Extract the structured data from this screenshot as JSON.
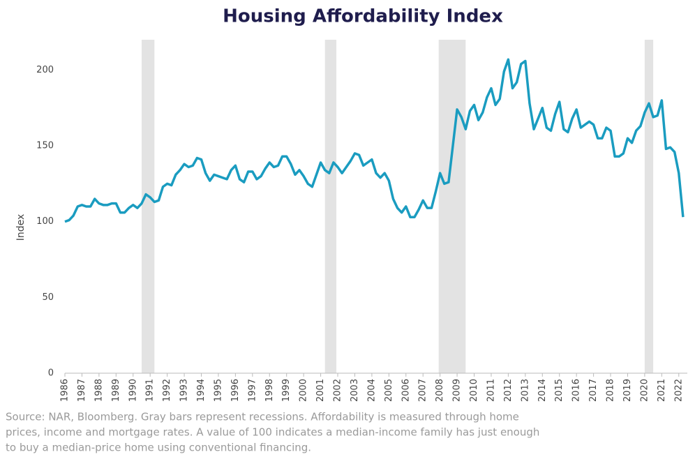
{
  "chart_data": {
    "type": "line",
    "title": "Housing Affordability Index",
    "y_label": "Index",
    "source_lines": [
      "Source: NAR, Bloomberg. Gray bars represent recessions. Affordability is measured through home",
      "prices, income and mortgage rates. A value of 100 indicates a median-income family has just enough",
      "to buy a median-price home using conventional financing."
    ],
    "x": [
      1986,
      1986.25,
      1986.5,
      1986.75,
      1987,
      1987.25,
      1987.5,
      1987.75,
      1988,
      1988.25,
      1988.5,
      1988.75,
      1989,
      1989.25,
      1989.5,
      1989.75,
      1990,
      1990.25,
      1990.5,
      1990.75,
      1991,
      1991.25,
      1991.5,
      1991.75,
      1992,
      1992.25,
      1992.5,
      1992.75,
      1993,
      1993.25,
      1993.5,
      1993.75,
      1994,
      1994.25,
      1994.5,
      1994.75,
      1995,
      1995.25,
      1995.5,
      1995.75,
      1996,
      1996.25,
      1996.5,
      1996.75,
      1997,
      1997.25,
      1997.5,
      1997.75,
      1998,
      1998.25,
      1998.5,
      1998.75,
      1999,
      1999.25,
      1999.5,
      1999.75,
      2000,
      2000.25,
      2000.5,
      2000.75,
      2001,
      2001.25,
      2001.5,
      2001.75,
      2002,
      2002.25,
      2002.5,
      2002.75,
      2003,
      2003.25,
      2003.5,
      2003.75,
      2004,
      2004.25,
      2004.5,
      2004.75,
      2005,
      2005.25,
      2005.5,
      2005.75,
      2006,
      2006.25,
      2006.5,
      2006.75,
      2007,
      2007.25,
      2007.5,
      2007.75,
      2008,
      2008.25,
      2008.5,
      2008.75,
      2009,
      2009.25,
      2009.5,
      2009.75,
      2010,
      2010.25,
      2010.5,
      2010.75,
      2011,
      2011.25,
      2011.5,
      2011.75,
      2012,
      2012.25,
      2012.5,
      2012.75,
      2013,
      2013.25,
      2013.5,
      2013.75,
      2014,
      2014.25,
      2014.5,
      2014.75,
      2015,
      2015.25,
      2015.5,
      2015.75,
      2016,
      2016.25,
      2016.5,
      2016.75,
      2017,
      2017.25,
      2017.5,
      2017.75,
      2018,
      2018.25,
      2018.5,
      2018.75,
      2019,
      2019.25,
      2019.5,
      2019.75,
      2020,
      2020.25,
      2020.5,
      2020.75,
      2021,
      2021.25,
      2021.5,
      2021.75,
      2022,
      2022.25
    ],
    "series": [
      {
        "name": "Housing Affordability Index",
        "color": "#1a9cc0",
        "values": [
          100,
          101,
          104,
          110,
          111,
          110,
          110,
          115,
          112,
          111,
          111,
          112,
          112,
          106,
          106,
          109,
          111,
          109,
          112,
          118,
          116,
          113,
          114,
          123,
          125,
          124,
          131,
          134,
          138,
          136,
          137,
          142,
          141,
          132,
          127,
          131,
          130,
          129,
          128,
          134,
          137,
          128,
          126,
          133,
          133,
          128,
          130,
          135,
          139,
          136,
          137,
          143,
          143,
          138,
          131,
          134,
          130,
          125,
          123,
          131,
          139,
          134,
          132,
          139,
          136,
          132,
          136,
          140,
          145,
          144,
          137,
          139,
          141,
          132,
          129,
          132,
          127,
          115,
          109,
          106,
          110,
          103,
          103,
          108,
          114,
          109,
          109,
          120,
          132,
          125,
          126,
          150,
          174,
          169,
          161,
          173,
          177,
          167,
          172,
          182,
          188,
          177,
          181,
          199,
          207,
          188,
          192,
          204,
          206,
          178,
          161,
          168,
          175,
          162,
          160,
          171,
          179,
          161,
          159,
          168,
          174,
          162,
          164,
          166,
          164,
          155,
          155,
          162,
          160,
          143,
          143,
          145,
          155,
          152,
          160,
          163,
          172,
          178,
          169,
          170,
          180,
          148,
          149,
          146,
          132,
          103
        ]
      }
    ],
    "recessions": [
      [
        1990.5,
        1991.25
      ],
      [
        2001.25,
        2001.92
      ],
      [
        2007.92,
        2009.5
      ],
      [
        2020,
        2020.5
      ]
    ],
    "recession_color": "#e3e3e3",
    "xlim": [
      1986,
      2022.5
    ],
    "xticks": [
      1986,
      1987,
      1988,
      1989,
      1990,
      1991,
      1992,
      1993,
      1994,
      1995,
      1996,
      1997,
      1998,
      1999,
      2000,
      2001,
      2002,
      2003,
      2004,
      2005,
      2006,
      2007,
      2008,
      2009,
      2010,
      2011,
      2012,
      2013,
      2014,
      2015,
      2016,
      2017,
      2018,
      2019,
      2020,
      2021,
      2022
    ],
    "ylim": [
      0,
      220
    ],
    "yticks": [
      0,
      50,
      100,
      150,
      200
    ],
    "grid": false
  }
}
